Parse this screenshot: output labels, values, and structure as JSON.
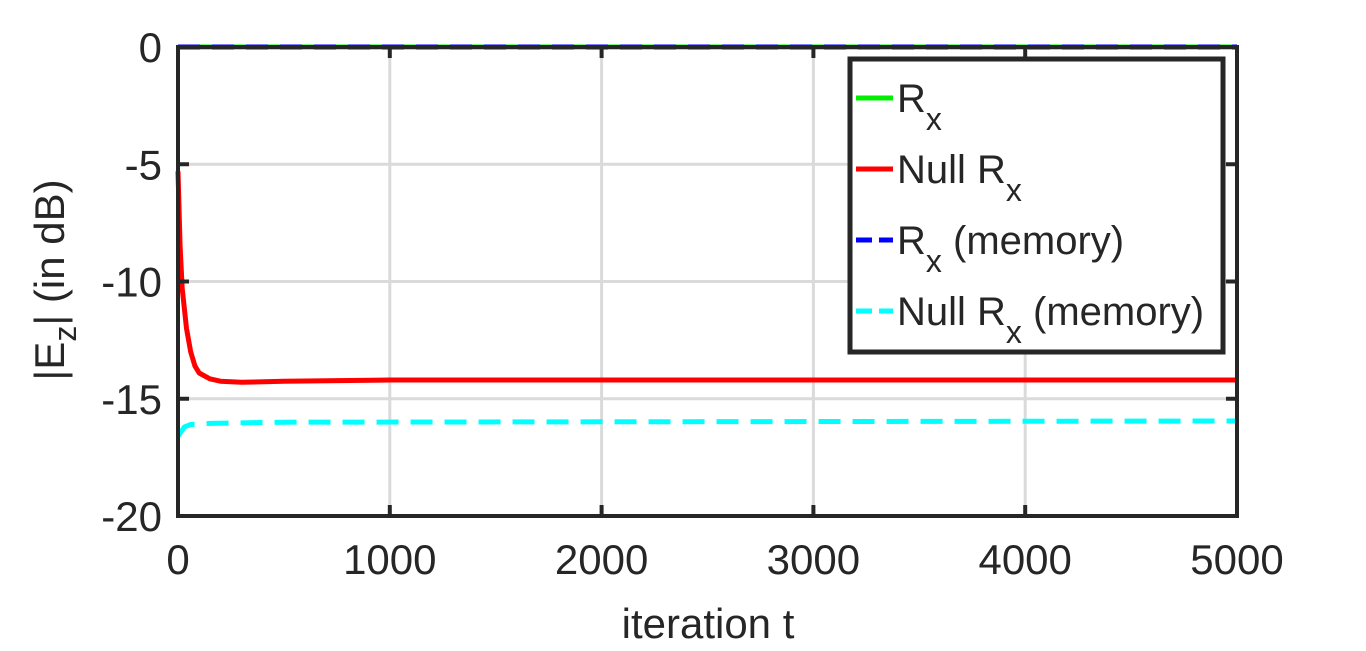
{
  "chart_data": {
    "type": "line",
    "xlabel": "iteration t",
    "ylabel": {
      "base": "|E",
      "sub": "z",
      "tail": "| (in dB)"
    },
    "xlim": [
      0,
      5000
    ],
    "ylim": [
      -20,
      0
    ],
    "xticks": [
      0,
      1000,
      2000,
      3000,
      4000,
      5000
    ],
    "xtick_labels": [
      "0",
      "1000",
      "2000",
      "3000",
      "4000",
      "5000"
    ],
    "yticks": [
      0,
      -5,
      -10,
      -15,
      -20
    ],
    "ytick_labels": [
      "0",
      "-5",
      "-10",
      "-15",
      "-20"
    ],
    "grid": true,
    "legend_position": "top-right",
    "series": [
      {
        "name": {
          "base": "R",
          "sub": "x",
          "tail": ""
        },
        "color": "#00ee00",
        "dash": "solid",
        "points": [
          [
            0,
            0
          ],
          [
            5000,
            0
          ]
        ]
      },
      {
        "name": {
          "base": "Null R",
          "sub": "x",
          "tail": ""
        },
        "color": "#ff0000",
        "dash": "solid",
        "points": [
          [
            0,
            -5.3
          ],
          [
            10,
            -8.5
          ],
          [
            20,
            -10.3
          ],
          [
            40,
            -12.0
          ],
          [
            60,
            -13.0
          ],
          [
            80,
            -13.6
          ],
          [
            100,
            -13.9
          ],
          [
            150,
            -14.15
          ],
          [
            200,
            -14.25
          ],
          [
            300,
            -14.3
          ],
          [
            500,
            -14.25
          ],
          [
            1000,
            -14.2
          ],
          [
            2000,
            -14.2
          ],
          [
            3000,
            -14.2
          ],
          [
            4000,
            -14.2
          ],
          [
            5000,
            -14.2
          ]
        ]
      },
      {
        "name": {
          "base": "R",
          "sub": "x",
          "tail": " (memory)"
        },
        "color": "#0000ff",
        "dash": "dashed",
        "points": [
          [
            0,
            0
          ],
          [
            5000,
            0
          ]
        ]
      },
      {
        "name": {
          "base": "Null R",
          "sub": "x",
          "tail": " (memory)"
        },
        "color": "#00ffff",
        "dash": "dashed",
        "points": [
          [
            0,
            -16.6
          ],
          [
            15,
            -16.4
          ],
          [
            30,
            -16.2
          ],
          [
            60,
            -16.1
          ],
          [
            150,
            -16.05
          ],
          [
            500,
            -16.0
          ],
          [
            5000,
            -15.95
          ]
        ]
      }
    ]
  }
}
